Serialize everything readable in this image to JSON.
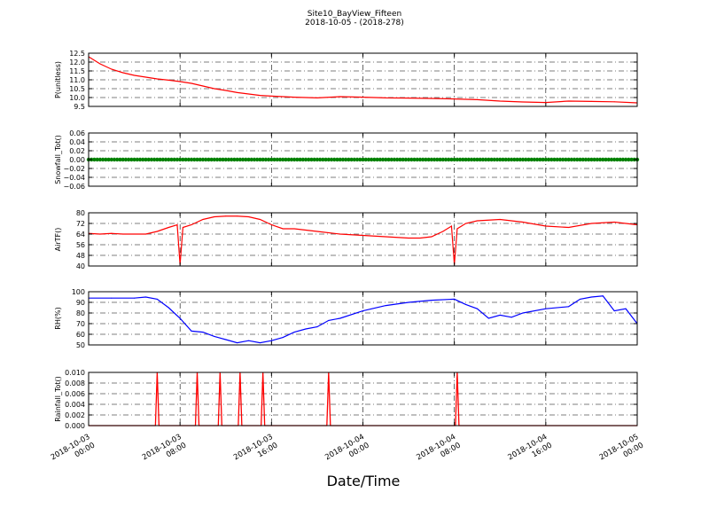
{
  "figure": {
    "title": "Site10_BayView_Fifteen",
    "subtitle": "2018-10-05 - (2018-278)",
    "xlabel": "Date/Time"
  },
  "chart_data": [
    {
      "type": "line",
      "ylabel": "P(unitless)",
      "color": "#ff0000",
      "ylim": [
        9.5,
        12.5
      ],
      "yticks": [
        9.5,
        10.0,
        10.5,
        11.0,
        11.5,
        12.0,
        12.5
      ],
      "ytick_labels": [
        "9.5",
        "10.0",
        "10.5",
        "11.0",
        "11.5",
        "12.0",
        "12.5"
      ],
      "grid": true,
      "x": [
        "2018-10-03 00:00",
        "2018-10-03 01:00",
        "2018-10-03 02:00",
        "2018-10-03 03:00",
        "2018-10-03 04:00",
        "2018-10-03 05:00",
        "2018-10-03 06:00",
        "2018-10-03 07:00",
        "2018-10-03 08:00",
        "2018-10-03 09:00",
        "2018-10-03 10:00",
        "2018-10-03 11:00",
        "2018-10-03 12:00",
        "2018-10-03 13:00",
        "2018-10-03 14:00",
        "2018-10-03 15:00",
        "2018-10-03 16:00",
        "2018-10-03 18:00",
        "2018-10-03 20:00",
        "2018-10-03 22:00",
        "2018-10-04 00:00",
        "2018-10-04 02:00",
        "2018-10-04 04:00",
        "2018-10-04 06:00",
        "2018-10-04 08:00",
        "2018-10-04 10:00",
        "2018-10-04 12:00",
        "2018-10-04 14:00",
        "2018-10-04 16:00",
        "2018-10-04 18:00",
        "2018-10-04 20:00",
        "2018-10-04 22:00",
        "2018-10-05 00:00"
      ],
      "y": [
        12.3,
        11.9,
        11.6,
        11.4,
        11.25,
        11.15,
        11.05,
        10.98,
        10.9,
        10.8,
        10.65,
        10.5,
        10.4,
        10.28,
        10.2,
        10.12,
        10.08,
        10.02,
        9.98,
        10.05,
        10.02,
        9.98,
        9.97,
        9.95,
        9.92,
        9.88,
        9.8,
        9.75,
        9.72,
        9.8,
        9.78,
        9.76,
        9.7
      ]
    },
    {
      "type": "scatter",
      "ylabel": "Snowfall_Tot()",
      "color": "#008000",
      "ylim": [
        -0.06,
        0.06
      ],
      "yticks": [
        -0.06,
        -0.04,
        -0.02,
        0.0,
        0.02,
        0.04,
        0.06
      ],
      "ytick_labels": [
        "−0.06",
        "−0.04",
        "−0.02",
        "0.00",
        "0.02",
        "0.04",
        "0.06"
      ],
      "grid": true,
      "note_values": "constant 0.00 at every 15-minute sample",
      "x_range": [
        "2018-10-03 00:00",
        "2018-10-05 00:00"
      ],
      "y_constant": 0.0
    },
    {
      "type": "line",
      "ylabel": "AirTF()",
      "color": "#ff0000",
      "ylim": [
        40,
        80
      ],
      "yticks": [
        40,
        48,
        56,
        64,
        72,
        80
      ],
      "ytick_labels": [
        "40",
        "48",
        "56",
        "64",
        "72",
        "80"
      ],
      "grid": true,
      "x": [
        "2018-10-03 00:00",
        "2018-10-03 01:00",
        "2018-10-03 02:00",
        "2018-10-03 03:00",
        "2018-10-03 04:00",
        "2018-10-03 05:00",
        "2018-10-03 06:00",
        "2018-10-03 07:00",
        "2018-10-03 07:45",
        "2018-10-03 08:00",
        "2018-10-03 08:15",
        "2018-10-03 09:00",
        "2018-10-03 10:00",
        "2018-10-03 11:00",
        "2018-10-03 12:00",
        "2018-10-03 13:00",
        "2018-10-03 14:00",
        "2018-10-03 15:00",
        "2018-10-03 16:00",
        "2018-10-03 17:00",
        "2018-10-03 18:00",
        "2018-10-03 20:00",
        "2018-10-03 22:00",
        "2018-10-04 00:00",
        "2018-10-04 02:00",
        "2018-10-04 04:00",
        "2018-10-04 05:00",
        "2018-10-04 06:00",
        "2018-10-04 07:00",
        "2018-10-04 07:45",
        "2018-10-04 08:00",
        "2018-10-04 08:15",
        "2018-10-04 09:00",
        "2018-10-04 10:00",
        "2018-10-04 12:00",
        "2018-10-04 14:00",
        "2018-10-04 16:00",
        "2018-10-04 18:00",
        "2018-10-04 20:00",
        "2018-10-04 22:00",
        "2018-10-05 00:00"
      ],
      "y": [
        64.5,
        64,
        64.5,
        64,
        64,
        64,
        66,
        69,
        71,
        41,
        69,
        71,
        75,
        77,
        77.5,
        77.5,
        77,
        75,
        71,
        68,
        68,
        66,
        64,
        63,
        62,
        61,
        61,
        62,
        66,
        70,
        41,
        68,
        72,
        74,
        75,
        73,
        70,
        69,
        72,
        73,
        71
      ]
    },
    {
      "type": "line",
      "ylabel": "RH(%)",
      "color": "#0000ff",
      "ylim": [
        50,
        100
      ],
      "yticks": [
        50,
        60,
        70,
        80,
        90,
        100
      ],
      "ytick_labels": [
        "50",
        "60",
        "70",
        "80",
        "90",
        "100"
      ],
      "grid": true,
      "x": [
        "2018-10-03 00:00",
        "2018-10-03 02:00",
        "2018-10-03 04:00",
        "2018-10-03 05:00",
        "2018-10-03 06:00",
        "2018-10-03 07:00",
        "2018-10-03 08:00",
        "2018-10-03 09:00",
        "2018-10-03 10:00",
        "2018-10-03 11:00",
        "2018-10-03 12:00",
        "2018-10-03 13:00",
        "2018-10-03 14:00",
        "2018-10-03 15:00",
        "2018-10-03 16:00",
        "2018-10-03 17:00",
        "2018-10-03 18:00",
        "2018-10-03 19:00",
        "2018-10-03 20:00",
        "2018-10-03 21:00",
        "2018-10-03 22:00",
        "2018-10-04 00:00",
        "2018-10-04 02:00",
        "2018-10-04 04:00",
        "2018-10-04 06:00",
        "2018-10-04 08:00",
        "2018-10-04 09:00",
        "2018-10-04 10:00",
        "2018-10-04 11:00",
        "2018-10-04 12:00",
        "2018-10-04 13:00",
        "2018-10-04 14:00",
        "2018-10-04 16:00",
        "2018-10-04 18:00",
        "2018-10-04 19:00",
        "2018-10-04 20:00",
        "2018-10-04 21:00",
        "2018-10-04 22:00",
        "2018-10-04 23:00",
        "2018-10-05 00:00"
      ],
      "y": [
        94,
        94,
        94,
        95,
        93,
        85,
        75,
        63,
        62,
        58,
        55,
        52,
        54,
        52,
        54,
        57,
        62,
        65,
        67,
        73,
        75,
        82,
        87,
        90,
        92,
        93,
        88,
        84,
        75,
        78,
        76,
        80,
        84,
        86,
        93,
        95,
        96,
        82,
        84,
        70
      ]
    },
    {
      "type": "line",
      "ylabel": "Rainfall_Tot()",
      "color": "#ff0000",
      "ylim": [
        0.0,
        0.01
      ],
      "yticks": [
        0.0,
        0.002,
        0.004,
        0.006,
        0.008,
        0.01
      ],
      "ytick_labels": [
        "0.000",
        "0.002",
        "0.004",
        "0.006",
        "0.008",
        "0.010"
      ],
      "grid": true,
      "spikes_at": [
        "2018-10-03 06:00",
        "2018-10-03 09:30",
        "2018-10-03 11:30",
        "2018-10-03 13:15",
        "2018-10-03 15:15",
        "2018-10-03 21:00",
        "2018-10-04 08:15"
      ],
      "spike_value": 0.01,
      "baseline": 0.0
    }
  ],
  "x_axis": {
    "range": [
      "2018-10-03 00:00",
      "2018-10-05 00:00"
    ],
    "tick_labels": [
      [
        "2018-10-03",
        "00:00"
      ],
      [
        "2018-10-03",
        "08:00"
      ],
      [
        "2018-10-03",
        "16:00"
      ],
      [
        "2018-10-04",
        "00:00"
      ],
      [
        "2018-10-04",
        "08:00"
      ],
      [
        "2018-10-04",
        "16:00"
      ],
      [
        "2018-10-05",
        "00:00"
      ]
    ]
  }
}
